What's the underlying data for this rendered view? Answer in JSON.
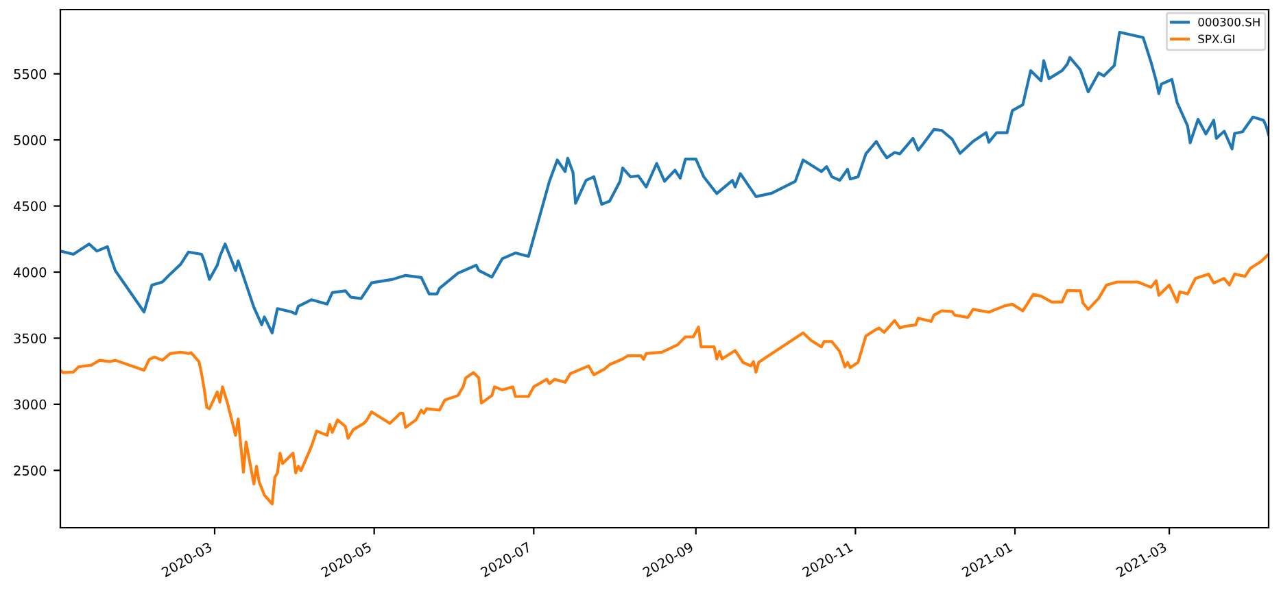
{
  "chart_data": {
    "type": "line",
    "legend": "top right",
    "grid": false,
    "xlim": [
      "2020-01-02",
      "2021-04-08"
    ],
    "ylim": [
      2066,
      5986
    ],
    "xticks": [
      {
        "value": "2020-03-01",
        "label": "2020-03"
      },
      {
        "value": "2020-05-01",
        "label": "2020-05"
      },
      {
        "value": "2020-07-01",
        "label": "2020-07"
      },
      {
        "value": "2020-09-01",
        "label": "2020-09"
      },
      {
        "value": "2020-11-01",
        "label": "2020-11"
      },
      {
        "value": "2021-01-01",
        "label": "2021-01"
      },
      {
        "value": "2021-03-01",
        "label": "2021-03"
      }
    ],
    "yticks": [
      2500,
      3000,
      3500,
      4000,
      4500,
      5000,
      5500
    ],
    "series": [
      {
        "name": "000300.SH",
        "color": "#1f77b4",
        "x": [
          "2020-01-02",
          "2020-01-07",
          "2020-01-13",
          "2020-01-16",
          "2020-01-20",
          "2020-01-21",
          "2020-01-23",
          "2020-02-03",
          "2020-02-06",
          "2020-02-10",
          "2020-02-13",
          "2020-02-17",
          "2020-02-20",
          "2020-02-25",
          "2020-02-26",
          "2020-02-28",
          "2020-03-02",
          "2020-03-03",
          "2020-03-05",
          "2020-03-09",
          "2020-03-10",
          "2020-03-16",
          "2020-03-19",
          "2020-03-20",
          "2020-03-23",
          "2020-03-25",
          "2020-03-30",
          "2020-04-01",
          "2020-04-02",
          "2020-04-07",
          "2020-04-13",
          "2020-04-15",
          "2020-04-20",
          "2020-04-22",
          "2020-04-26",
          "2020-04-30",
          "2020-05-08",
          "2020-05-13",
          "2020-05-19",
          "2020-05-22",
          "2020-05-25",
          "2020-05-26",
          "2020-06-02",
          "2020-06-09",
          "2020-06-10",
          "2020-06-15",
          "2020-06-19",
          "2020-06-24",
          "2020-06-29",
          "2020-07-07",
          "2020-07-10",
          "2020-07-13",
          "2020-07-14",
          "2020-07-16",
          "2020-07-17",
          "2020-07-21",
          "2020-07-24",
          "2020-07-27",
          "2020-07-30",
          "2020-08-03",
          "2020-08-04",
          "2020-08-07",
          "2020-08-10",
          "2020-08-13",
          "2020-08-17",
          "2020-08-20",
          "2020-08-24",
          "2020-08-26",
          "2020-08-28",
          "2020-09-01",
          "2020-09-04",
          "2020-09-09",
          "2020-09-15",
          "2020-09-16",
          "2020-09-18",
          "2020-09-24",
          "2020-09-30",
          "2020-10-09",
          "2020-10-12",
          "2020-10-19",
          "2020-10-21",
          "2020-10-23",
          "2020-10-26",
          "2020-10-29",
          "2020-10-30",
          "2020-11-02",
          "2020-11-05",
          "2020-11-09",
          "2020-11-11",
          "2020-11-13",
          "2020-11-16",
          "2020-11-18",
          "2020-11-23",
          "2020-11-25",
          "2020-11-27",
          "2020-12-01",
          "2020-12-04",
          "2020-12-08",
          "2020-12-11",
          "2020-12-16",
          "2020-12-21",
          "2020-12-22",
          "2020-12-25",
          "2020-12-29",
          "2020-12-31",
          "2021-01-04",
          "2021-01-07",
          "2021-01-11",
          "2021-01-12",
          "2021-01-14",
          "2021-01-19",
          "2021-01-21",
          "2021-01-22",
          "2021-01-26",
          "2021-01-29",
          "2021-02-02",
          "2021-02-04",
          "2021-02-08",
          "2021-02-10",
          "2021-02-19",
          "2021-02-22",
          "2021-02-24",
          "2021-02-25",
          "2021-02-26",
          "2021-03-02",
          "2021-03-04",
          "2021-03-08",
          "2021-03-09",
          "2021-03-12",
          "2021-03-15",
          "2021-03-18",
          "2021-03-19",
          "2021-03-22",
          "2021-03-25",
          "2021-03-26",
          "2021-03-29",
          "2021-04-02",
          "2021-04-06",
          "2021-04-07",
          "2021-04-08"
        ],
        "values": [
          4159,
          4135,
          4213,
          4159,
          4193,
          4125,
          4012,
          3698,
          3902,
          3925,
          3985,
          4059,
          4152,
          4135,
          4085,
          3945,
          4052,
          4119,
          4213,
          4012,
          4085,
          3734,
          3601,
          3661,
          3540,
          3724,
          3701,
          3684,
          3741,
          3791,
          3758,
          3845,
          3858,
          3811,
          3800,
          3919,
          3945,
          3975,
          3959,
          3835,
          3835,
          3878,
          3992,
          4052,
          4012,
          3962,
          4102,
          4145,
          4119,
          4687,
          4848,
          4761,
          4862,
          4755,
          4520,
          4694,
          4721,
          4513,
          4537,
          4687,
          4788,
          4721,
          4728,
          4644,
          4822,
          4687,
          4771,
          4711,
          4855,
          4855,
          4721,
          4594,
          4694,
          4644,
          4745,
          4571,
          4597,
          4687,
          4848,
          4761,
          4798,
          4721,
          4694,
          4778,
          4704,
          4721,
          4895,
          4988,
          4922,
          4865,
          4905,
          4895,
          5012,
          4922,
          4972,
          5079,
          5072,
          5005,
          4898,
          4989,
          5055,
          4982,
          5055,
          5055,
          5222,
          5266,
          5524,
          5447,
          5600,
          5463,
          5524,
          5573,
          5624,
          5530,
          5363,
          5507,
          5484,
          5563,
          5815,
          5775,
          5590,
          5447,
          5350,
          5423,
          5457,
          5283,
          5106,
          4978,
          5156,
          5045,
          5149,
          5012,
          5066,
          4932,
          5049,
          5062,
          5173,
          5149,
          5106,
          5039
        ]
      },
      {
        "name": "SPX.GI",
        "color": "#ff7f0e",
        "x": [
          "2020-01-02",
          "2020-01-03",
          "2020-01-07",
          "2020-01-09",
          "2020-01-14",
          "2020-01-17",
          "2020-01-21",
          "2020-01-23",
          "2020-02-03",
          "2020-02-05",
          "2020-02-07",
          "2020-02-10",
          "2020-02-13",
          "2020-02-17",
          "2020-02-20",
          "2020-02-21",
          "2020-02-24",
          "2020-02-25",
          "2020-02-26",
          "2020-02-27",
          "2020-02-28",
          "2020-03-02",
          "2020-03-03",
          "2020-03-04",
          "2020-03-06",
          "2020-03-09",
          "2020-03-10",
          "2020-03-12",
          "2020-03-13",
          "2020-03-16",
          "2020-03-17",
          "2020-03-18",
          "2020-03-20",
          "2020-03-23",
          "2020-03-24",
          "2020-03-25",
          "2020-03-26",
          "2020-03-27",
          "2020-03-31",
          "2020-04-01",
          "2020-04-02",
          "2020-04-03",
          "2020-04-07",
          "2020-04-09",
          "2020-04-13",
          "2020-04-14",
          "2020-04-15",
          "2020-04-17",
          "2020-04-20",
          "2020-04-21",
          "2020-04-23",
          "2020-04-27",
          "2020-04-28",
          "2020-04-30",
          "2020-05-07",
          "2020-05-11",
          "2020-05-12",
          "2020-05-13",
          "2020-05-17",
          "2020-05-19",
          "2020-05-20",
          "2020-05-21",
          "2020-05-26",
          "2020-05-28",
          "2020-06-02",
          "2020-06-04",
          "2020-06-05",
          "2020-06-08",
          "2020-06-10",
          "2020-06-11",
          "2020-06-15",
          "2020-06-16",
          "2020-06-19",
          "2020-06-23",
          "2020-06-24",
          "2020-06-29",
          "2020-07-01",
          "2020-07-06",
          "2020-07-07",
          "2020-07-09",
          "2020-07-13",
          "2020-07-15",
          "2020-07-22",
          "2020-07-24",
          "2020-07-28",
          "2020-07-30",
          "2020-08-04",
          "2020-08-06",
          "2020-08-11",
          "2020-08-12",
          "2020-08-13",
          "2020-08-19",
          "2020-08-25",
          "2020-08-27",
          "2020-08-28",
          "2020-08-31",
          "2020-09-02",
          "2020-09-03",
          "2020-09-08",
          "2020-09-09",
          "2020-09-10",
          "2020-09-11",
          "2020-09-16",
          "2020-09-19",
          "2020-09-22",
          "2020-09-23",
          "2020-09-24",
          "2020-09-25",
          "2020-09-28",
          "2020-10-12",
          "2020-10-15",
          "2020-10-19",
          "2020-10-20",
          "2020-10-23",
          "2020-10-26",
          "2020-10-28",
          "2020-10-29",
          "2020-10-30",
          "2020-11-02",
          "2020-11-05",
          "2020-11-09",
          "2020-11-10",
          "2020-11-12",
          "2020-11-16",
          "2020-11-18",
          "2020-11-20",
          "2020-11-24",
          "2020-11-25",
          "2020-11-30",
          "2020-12-01",
          "2020-12-04",
          "2020-12-08",
          "2020-12-09",
          "2020-12-14",
          "2020-12-16",
          "2020-12-22",
          "2020-12-28",
          "2020-12-31",
          "2021-01-04",
          "2021-01-08",
          "2021-01-11",
          "2021-01-15",
          "2021-01-19",
          "2021-01-21",
          "2021-01-26",
          "2021-01-27",
          "2021-01-29",
          "2021-02-02",
          "2021-02-05",
          "2021-02-09",
          "2021-02-17",
          "2021-02-22",
          "2021-02-24",
          "2021-02-25",
          "2021-03-01",
          "2021-03-04",
          "2021-03-05",
          "2021-03-08",
          "2021-03-11",
          "2021-03-16",
          "2021-03-18",
          "2021-03-22",
          "2021-03-24",
          "2021-03-26",
          "2021-03-30",
          "2021-04-01",
          "2021-04-05",
          "2021-04-08"
        ],
        "values": [
          3257,
          3240,
          3244,
          3283,
          3297,
          3333,
          3323,
          3333,
          3257,
          3340,
          3357,
          3333,
          3384,
          3394,
          3384,
          3390,
          3323,
          3232,
          3116,
          2976,
          2966,
          3093,
          3016,
          3132,
          3002,
          2765,
          2889,
          2487,
          2715,
          2397,
          2531,
          2414,
          2313,
          2246,
          2447,
          2481,
          2630,
          2552,
          2630,
          2481,
          2531,
          2497,
          2681,
          2798,
          2765,
          2848,
          2788,
          2882,
          2832,
          2742,
          2808,
          2855,
          2875,
          2942,
          2855,
          2932,
          2932,
          2825,
          2882,
          2956,
          2932,
          2966,
          2956,
          3032,
          3066,
          3132,
          3199,
          3240,
          3199,
          3009,
          3066,
          3132,
          3109,
          3132,
          3059,
          3059,
          3132,
          3189,
          3156,
          3189,
          3166,
          3232,
          3290,
          3223,
          3266,
          3300,
          3343,
          3367,
          3367,
          3340,
          3384,
          3394,
          3450,
          3490,
          3510,
          3510,
          3584,
          3434,
          3434,
          3343,
          3400,
          3343,
          3407,
          3317,
          3290,
          3323,
          3243,
          3317,
          3357,
          3540,
          3484,
          3434,
          3474,
          3474,
          3400,
          3283,
          3317,
          3277,
          3317,
          3517,
          3567,
          3577,
          3544,
          3634,
          3577,
          3590,
          3600,
          3651,
          3627,
          3674,
          3707,
          3701,
          3674,
          3657,
          3718,
          3697,
          3744,
          3757,
          3707,
          3831,
          3818,
          3774,
          3774,
          3861,
          3858,
          3767,
          3718,
          3801,
          3902,
          3925,
          3925,
          3885,
          3935,
          3824,
          3902,
          3774,
          3851,
          3835,
          3952,
          3985,
          3918,
          3952,
          3902,
          3985,
          3968,
          4029,
          4079,
          4135
        ]
      }
    ]
  }
}
